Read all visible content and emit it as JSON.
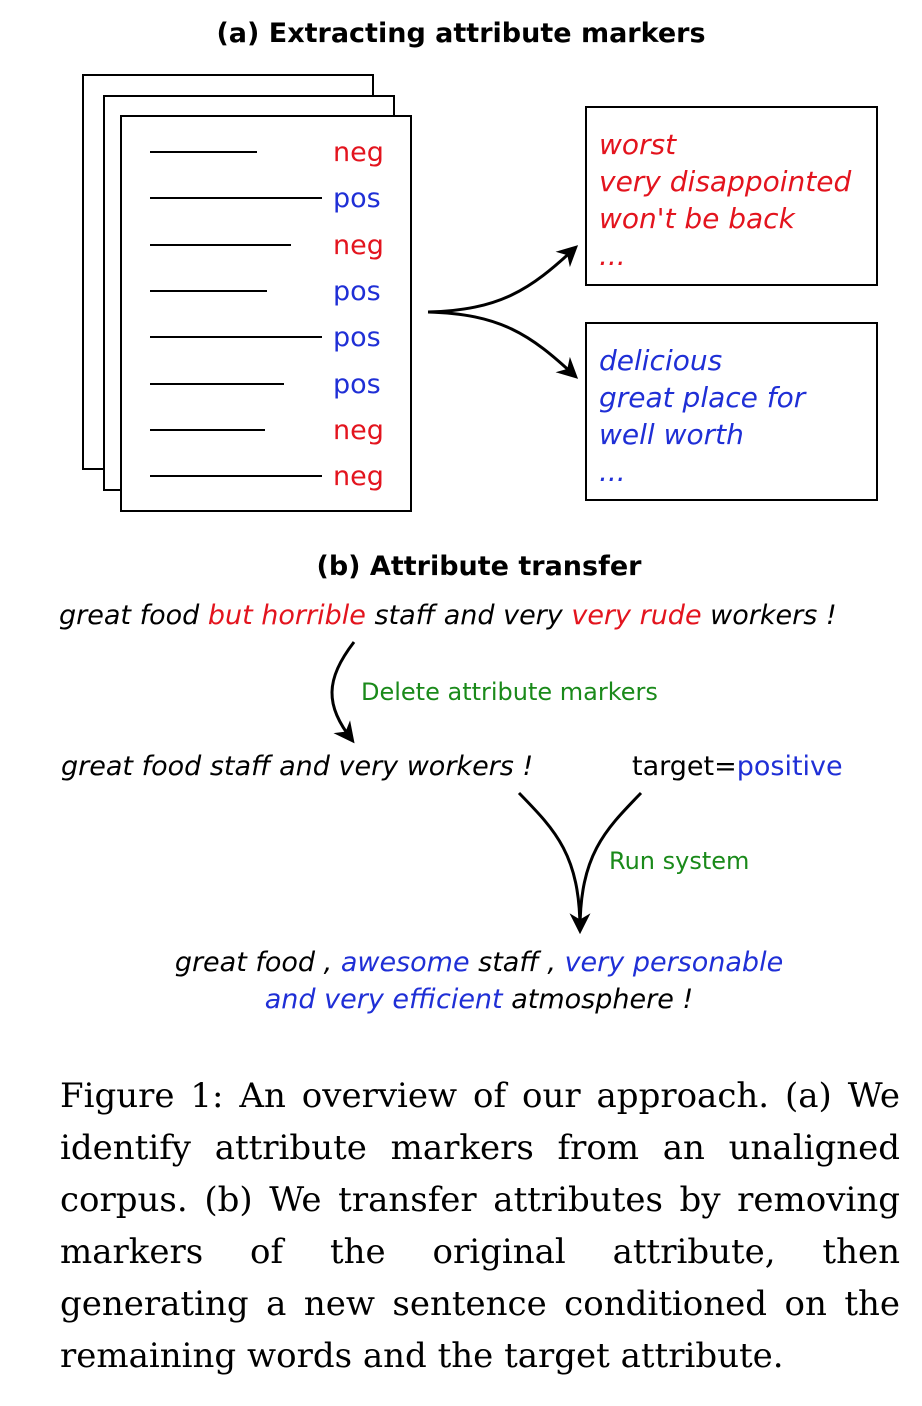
{
  "panel_a": {
    "title": "(a) Extracting attribute markers",
    "corpus_rows": [
      {
        "label": "neg",
        "sentiment": "neg",
        "length": 0.62
      },
      {
        "label": "pos",
        "sentiment": "pos",
        "length": 1.0
      },
      {
        "label": "neg",
        "sentiment": "neg",
        "length": 0.82
      },
      {
        "label": "pos",
        "sentiment": "pos",
        "length": 0.68
      },
      {
        "label": "pos",
        "sentiment": "pos",
        "length": 1.0
      },
      {
        "label": "pos",
        "sentiment": "pos",
        "length": 0.78
      },
      {
        "label": "neg",
        "sentiment": "neg",
        "length": 0.67
      },
      {
        "label": "neg",
        "sentiment": "neg",
        "length": 1.0
      }
    ],
    "neg_markers": [
      "worst",
      "very disappointed",
      "won't be back",
      "..."
    ],
    "pos_markers": [
      "delicious",
      "great place for",
      "well worth",
      "..."
    ]
  },
  "panel_b": {
    "title": "(b) Attribute transfer",
    "source": {
      "p1": "great food ",
      "m1": "but horrible",
      "p2": " staff and very ",
      "m2": "very rude",
      "p3": " workers !"
    },
    "delete_label": "Delete attribute markers",
    "content": "great food staff and very workers !",
    "target_prefix": "target=",
    "target_value": "positive",
    "run_label": "Run system",
    "output": {
      "p1": "great food , ",
      "m1": "awesome",
      "p2": " staff , ",
      "m2": "very personable",
      "m3": "and very efficient",
      "p3": " atmosphere !"
    }
  },
  "caption": "Figure 1:  An overview of our approach.  (a) We identify attribute markers from an unaligned corpus. (b) We transfer attributes by removing markers of the original attribute, then generating a new sentence conditioned on the remaining words and the target attribute.",
  "colors": {
    "negative": "#e3141e",
    "positive": "#1f2fd6",
    "annotation": "#1a8a1a"
  }
}
